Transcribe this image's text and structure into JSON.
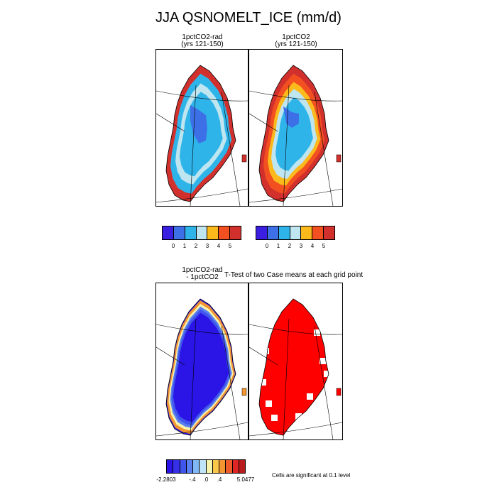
{
  "title": "JJA QSNOMELT_ICE (mm/d)",
  "panels": {
    "p1": {
      "title1": "1pctCO2-rad",
      "title2": "(yrs 121-150)"
    },
    "p2": {
      "title1": "1pctCO2",
      "title2": "(yrs 121-150)"
    },
    "p3": {
      "title1": "1pctCO2-rad",
      "title2": "- 1pctCO2"
    },
    "p4": {
      "title1": "T-Test of two Case means at each grid point"
    }
  },
  "legend_top": {
    "colors": [
      "#3a1fe0",
      "#3d70e6",
      "#2fb4ea",
      "#bfe6f0",
      "#fbb91c",
      "#f25021",
      "#d2302c"
    ],
    "ticks": [
      "0",
      "1",
      "2",
      "3",
      "4",
      "5"
    ]
  },
  "legend_diff": {
    "colors": [
      "#2a14e6",
      "#3530e8",
      "#3f55ec",
      "#5a7ff0",
      "#7fb8f4",
      "#bfe3f7",
      "#f7f4ae",
      "#f9c84a",
      "#f39531",
      "#ee5c2a",
      "#dd2525",
      "#b81c1c"
    ],
    "ticks": [
      "-2.2803",
      "-.4",
      ".0",
      ".4",
      "5.0477"
    ]
  },
  "significance_note": "Cells are significant at 0.1 level",
  "chart_data": [
    {
      "type": "heatmap",
      "title": "1pctCO2-rad (yrs 121-150)",
      "units": "mm/d",
      "color_levels": [
        0,
        1,
        2,
        3,
        4,
        5
      ]
    },
    {
      "type": "heatmap",
      "title": "1pctCO2 (yrs 121-150)",
      "units": "mm/d",
      "color_levels": [
        0,
        1,
        2,
        3,
        4,
        5
      ]
    },
    {
      "type": "heatmap",
      "title": "1pctCO2-rad - 1pctCO2",
      "units": "mm/d",
      "range": [
        -2.2803,
        5.0477
      ],
      "labeled_levels": [
        -0.4,
        0.0,
        0.4
      ]
    },
    {
      "type": "heatmap",
      "title": "T-Test of two Case means at each grid point",
      "significance_level": 0.1
    }
  ]
}
